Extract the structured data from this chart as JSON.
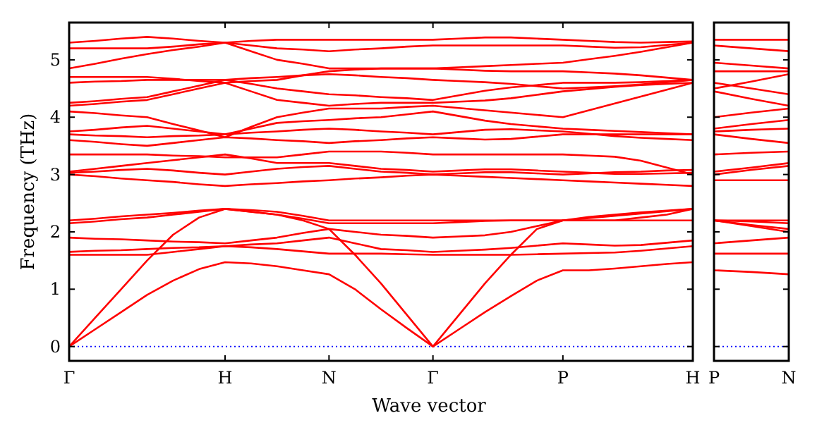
{
  "chart_data": [
    {
      "type": "line",
      "xlabel": "Wave vector",
      "ylabel": "Frequency (THz)",
      "categories": [
        "Γ",
        null,
        null,
        null,
        null,
        null,
        "H",
        null,
        null,
        null,
        "N",
        null,
        null,
        null,
        "Γ",
        null,
        null,
        null,
        null,
        "P",
        null,
        null,
        null,
        null,
        "H"
      ],
      "ylim": [
        -0.25,
        5.65
      ],
      "yticks": [
        0,
        1,
        2,
        3,
        4,
        5
      ],
      "ref_lines": [
        {
          "axis": "y",
          "value": 0,
          "color": "#0000ff",
          "line_style": "dotted"
        }
      ],
      "series": [
        {
          "color": "#ff0000",
          "values": [
            0,
            0.3,
            0.6,
            0.9,
            1.15,
            1.35,
            1.47,
            1.45,
            1.4,
            1.33,
            1.26,
            1.0,
            0.65,
            0.32,
            0,
            0.3,
            0.6,
            0.88,
            1.15,
            1.33,
            1.33,
            1.36,
            1.4,
            1.44,
            1.47
          ]
        },
        {
          "color": "#ff0000",
          "values": [
            0,
            0.5,
            1.0,
            1.5,
            1.95,
            2.25,
            2.4,
            2.35,
            2.3,
            2.2,
            2.05,
            1.6,
            1.1,
            0.55,
            0,
            0.55,
            1.1,
            1.6,
            2.05,
            2.2,
            2.2,
            2.2,
            2.25,
            2.3,
            2.4
          ]
        },
        {
          "color": "#ff0000",
          "values": [
            1.6,
            1.6,
            1.6,
            1.6,
            1.65,
            1.7,
            1.75,
            1.73,
            1.7,
            1.66,
            1.62,
            1.62,
            1.62,
            1.61,
            1.6,
            1.6,
            1.6,
            1.6,
            1.61,
            1.62,
            1.63,
            1.64,
            1.67,
            1.71,
            1.75
          ]
        },
        {
          "color": "#ff0000",
          "values": [
            1.65,
            1.67,
            1.68,
            1.7,
            1.72,
            1.73,
            1.75,
            1.78,
            1.8,
            1.85,
            1.9,
            1.8,
            1.7,
            1.68,
            1.65,
            1.67,
            1.69,
            1.72,
            1.76,
            1.8,
            1.78,
            1.76,
            1.77,
            1.81,
            1.85
          ]
        },
        {
          "color": "#ff0000",
          "values": [
            1.9,
            1.88,
            1.87,
            1.85,
            1.83,
            1.82,
            1.8,
            1.85,
            1.9,
            1.98,
            2.05,
            2.0,
            1.95,
            1.93,
            1.9,
            1.92,
            1.94,
            2.0,
            2.1,
            2.2,
            2.2,
            2.2,
            2.2,
            2.2,
            2.2
          ]
        },
        {
          "color": "#ff0000",
          "values": [
            2.15,
            2.18,
            2.22,
            2.25,
            2.3,
            2.35,
            2.4,
            2.35,
            2.3,
            2.23,
            2.15,
            2.15,
            2.15,
            2.15,
            2.15,
            2.17,
            2.19,
            2.2,
            2.2,
            2.2,
            2.24,
            2.28,
            2.32,
            2.36,
            2.4
          ]
        },
        {
          "color": "#ff0000",
          "values": [
            2.2,
            2.23,
            2.27,
            2.3,
            2.33,
            2.37,
            2.4,
            2.38,
            2.35,
            2.28,
            2.2,
            2.2,
            2.2,
            2.2,
            2.2,
            2.2,
            2.2,
            2.2,
            2.2,
            2.2,
            2.26,
            2.3,
            2.34,
            2.37,
            2.4
          ]
        },
        {
          "color": "#ff0000",
          "values": [
            3.0,
            2.97,
            2.93,
            2.9,
            2.87,
            2.83,
            2.8,
            2.83,
            2.85,
            2.88,
            2.9,
            2.93,
            2.95,
            2.98,
            3.0,
            2.98,
            2.96,
            2.94,
            2.92,
            2.9,
            2.88,
            2.86,
            2.84,
            2.82,
            2.8
          ]
        },
        {
          "color": "#ff0000",
          "values": [
            3.03,
            3.05,
            3.08,
            3.1,
            3.07,
            3.03,
            3.0,
            3.05,
            3.1,
            3.13,
            3.15,
            3.1,
            3.05,
            3.03,
            3.0,
            3.02,
            3.04,
            3.04,
            3.02,
            3.0,
            3.02,
            3.04,
            3.05,
            3.07,
            3.08
          ]
        },
        {
          "color": "#ff0000",
          "values": [
            3.05,
            3.1,
            3.15,
            3.2,
            3.25,
            3.3,
            3.35,
            3.28,
            3.2,
            3.2,
            3.2,
            3.15,
            3.1,
            3.08,
            3.05,
            3.07,
            3.09,
            3.09,
            3.07,
            3.05,
            3.03,
            3.01,
            3.01,
            3.02,
            3.03
          ]
        },
        {
          "color": "#ff0000",
          "values": [
            3.35,
            3.35,
            3.35,
            3.35,
            3.33,
            3.32,
            3.3,
            3.3,
            3.3,
            3.35,
            3.4,
            3.4,
            3.4,
            3.38,
            3.35,
            3.35,
            3.35,
            3.35,
            3.35,
            3.35,
            3.33,
            3.31,
            3.24,
            3.12,
            3.0
          ]
        },
        {
          "color": "#ff0000",
          "values": [
            3.6,
            3.57,
            3.53,
            3.5,
            3.55,
            3.6,
            3.65,
            3.63,
            3.6,
            3.58,
            3.55,
            3.58,
            3.6,
            3.63,
            3.65,
            3.63,
            3.61,
            3.62,
            3.66,
            3.7,
            3.7,
            3.7,
            3.7,
            3.7,
            3.7
          ]
        },
        {
          "color": "#ff0000",
          "values": [
            3.7,
            3.68,
            3.67,
            3.65,
            3.67,
            3.68,
            3.7,
            3.73,
            3.75,
            3.78,
            3.8,
            3.78,
            3.75,
            3.73,
            3.7,
            3.74,
            3.78,
            3.79,
            3.77,
            3.75,
            3.71,
            3.67,
            3.64,
            3.62,
            3.6
          ]
        },
        {
          "color": "#ff0000",
          "values": [
            3.75,
            3.78,
            3.82,
            3.85,
            3.8,
            3.75,
            3.7,
            3.8,
            3.9,
            3.93,
            3.95,
            3.98,
            4.0,
            4.05,
            4.1,
            4.02,
            3.94,
            3.88,
            3.84,
            3.8,
            3.78,
            3.76,
            3.74,
            3.72,
            3.7
          ]
        },
        {
          "color": "#ff0000",
          "values": [
            4.1,
            4.07,
            4.03,
            4.0,
            3.88,
            3.77,
            3.65,
            3.83,
            4.0,
            4.08,
            4.15,
            4.15,
            4.15,
            4.18,
            4.2,
            4.16,
            4.12,
            4.08,
            4.04,
            4.0,
            4.12,
            4.24,
            4.36,
            4.48,
            4.6
          ]
        },
        {
          "color": "#ff0000",
          "values": [
            4.2,
            4.23,
            4.27,
            4.3,
            4.4,
            4.5,
            4.6,
            4.45,
            4.3,
            4.25,
            4.2,
            4.23,
            4.25,
            4.25,
            4.25,
            4.27,
            4.29,
            4.33,
            4.39,
            4.45,
            4.49,
            4.53,
            4.56,
            4.58,
            4.6
          ]
        },
        {
          "color": "#ff0000",
          "values": [
            4.25,
            4.28,
            4.32,
            4.35,
            4.45,
            4.55,
            4.65,
            4.58,
            4.5,
            4.45,
            4.4,
            4.38,
            4.35,
            4.33,
            4.3,
            4.38,
            4.46,
            4.52,
            4.56,
            4.6,
            4.6,
            4.6,
            4.61,
            4.63,
            4.65
          ]
        },
        {
          "color": "#ff0000",
          "values": [
            4.6,
            4.62,
            4.63,
            4.65,
            4.65,
            4.65,
            4.65,
            4.68,
            4.7,
            4.73,
            4.75,
            4.73,
            4.7,
            4.68,
            4.65,
            4.63,
            4.61,
            4.58,
            4.54,
            4.5,
            4.52,
            4.54,
            4.57,
            4.61,
            4.65
          ]
        },
        {
          "color": "#ff0000",
          "values": [
            4.7,
            4.7,
            4.7,
            4.7,
            4.67,
            4.63,
            4.6,
            4.63,
            4.65,
            4.73,
            4.8,
            4.83,
            4.85,
            4.85,
            4.85,
            4.83,
            4.81,
            4.8,
            4.8,
            4.8,
            4.78,
            4.76,
            4.73,
            4.69,
            4.65
          ]
        },
        {
          "color": "#ff0000",
          "values": [
            4.85,
            4.93,
            5.02,
            5.1,
            5.17,
            5.23,
            5.3,
            5.15,
            5.0,
            4.93,
            4.85,
            4.85,
            4.85,
            4.85,
            4.85,
            4.87,
            4.89,
            4.91,
            4.93,
            4.95,
            5.01,
            5.07,
            5.14,
            5.22,
            5.3
          ]
        },
        {
          "color": "#ff0000",
          "values": [
            5.2,
            5.2,
            5.2,
            5.2,
            5.23,
            5.27,
            5.3,
            5.25,
            5.2,
            5.18,
            5.15,
            5.18,
            5.2,
            5.23,
            5.25,
            5.25,
            5.25,
            5.25,
            5.25,
            5.25,
            5.23,
            5.21,
            5.22,
            5.26,
            5.3
          ]
        },
        {
          "color": "#ff0000",
          "values": [
            5.3,
            5.33,
            5.37,
            5.4,
            5.37,
            5.33,
            5.3,
            5.33,
            5.35,
            5.35,
            5.35,
            5.35,
            5.35,
            5.35,
            5.35,
            5.37,
            5.39,
            5.39,
            5.37,
            5.35,
            5.33,
            5.31,
            5.3,
            5.31,
            5.32
          ]
        }
      ]
    },
    {
      "type": "line",
      "categories": [
        "P",
        null,
        "N"
      ],
      "ylim": [
        -0.25,
        5.65
      ],
      "yticks": [
        0,
        1,
        2,
        3,
        4,
        5
      ],
      "tick_labels": "x",
      "ref_lines": [
        {
          "axis": "y",
          "value": 0,
          "color": "#0000ff",
          "line_style": "dotted"
        }
      ],
      "series": [
        {
          "color": "#ff0000",
          "values": [
            1.33,
            1.3,
            1.26
          ]
        },
        {
          "color": "#ff0000",
          "values": [
            2.2,
            2.1,
            2.0
          ]
        },
        {
          "color": "#ff0000",
          "values": [
            1.62,
            1.62,
            1.62
          ]
        },
        {
          "color": "#ff0000",
          "values": [
            1.8,
            1.85,
            1.9
          ]
        },
        {
          "color": "#ff0000",
          "values": [
            2.2,
            2.12,
            2.05
          ]
        },
        {
          "color": "#ff0000",
          "values": [
            2.2,
            2.18,
            2.15
          ]
        },
        {
          "color": "#ff0000",
          "values": [
            2.2,
            2.2,
            2.2
          ]
        },
        {
          "color": "#ff0000",
          "values": [
            2.9,
            2.9,
            2.9
          ]
        },
        {
          "color": "#ff0000",
          "values": [
            3.0,
            3.08,
            3.15
          ]
        },
        {
          "color": "#ff0000",
          "values": [
            3.05,
            3.12,
            3.2
          ]
        },
        {
          "color": "#ff0000",
          "values": [
            3.35,
            3.38,
            3.4
          ]
        },
        {
          "color": "#ff0000",
          "values": [
            3.7,
            3.62,
            3.55
          ]
        },
        {
          "color": "#ff0000",
          "values": [
            3.75,
            3.78,
            3.8
          ]
        },
        {
          "color": "#ff0000",
          "values": [
            3.8,
            3.88,
            3.95
          ]
        },
        {
          "color": "#ff0000",
          "values": [
            4.0,
            4.08,
            4.15
          ]
        },
        {
          "color": "#ff0000",
          "values": [
            4.45,
            4.32,
            4.2
          ]
        },
        {
          "color": "#ff0000",
          "values": [
            4.6,
            4.5,
            4.4
          ]
        },
        {
          "color": "#ff0000",
          "values": [
            4.5,
            4.62,
            4.75
          ]
        },
        {
          "color": "#ff0000",
          "values": [
            4.8,
            4.8,
            4.8
          ]
        },
        {
          "color": "#ff0000",
          "values": [
            4.95,
            4.9,
            4.85
          ]
        },
        {
          "color": "#ff0000",
          "values": [
            5.25,
            5.2,
            5.15
          ]
        },
        {
          "color": "#ff0000",
          "values": [
            5.35,
            5.35,
            5.35
          ]
        }
      ]
    }
  ]
}
